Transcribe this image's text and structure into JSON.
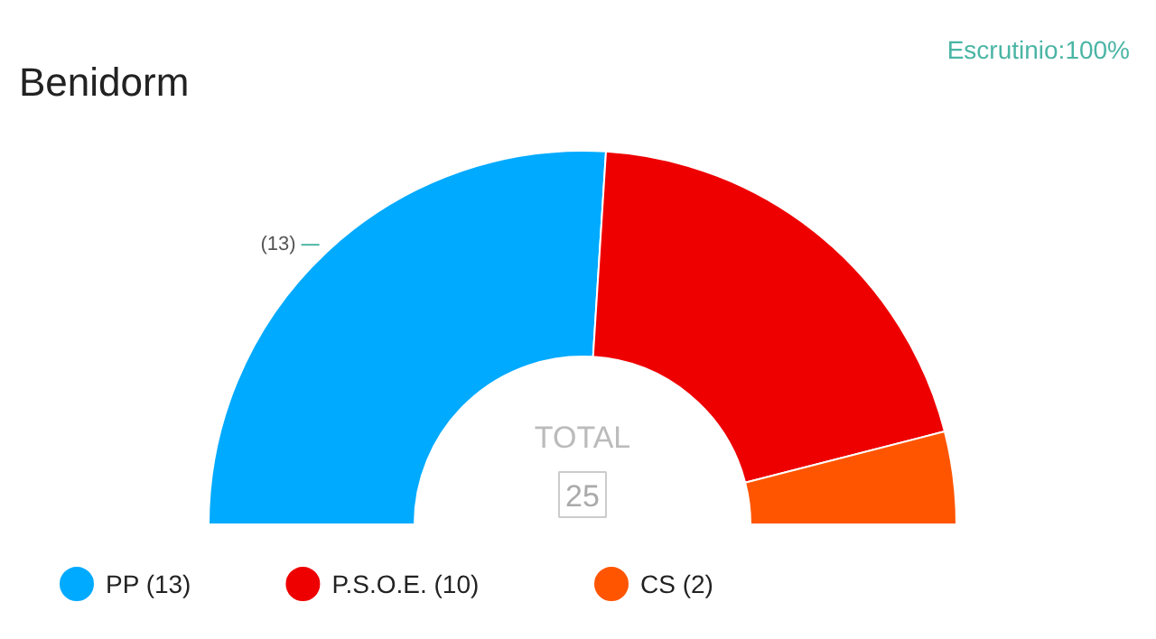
{
  "chart_data": {
    "type": "donut",
    "title": "Benidorm",
    "annotations": [
      "Escrutinio:100%",
      "TOTAL",
      "25"
    ],
    "categories": [
      "PP (13)",
      "P.S.O.E. (10)",
      "CS (2)"
    ],
    "values": [
      13,
      10,
      2
    ],
    "colors": [
      "#00aaff",
      "#ee0000",
      "#ff5500"
    ],
    "value_labels": [
      "(13)",
      null,
      null
    ],
    "legend": "bottom"
  }
}
